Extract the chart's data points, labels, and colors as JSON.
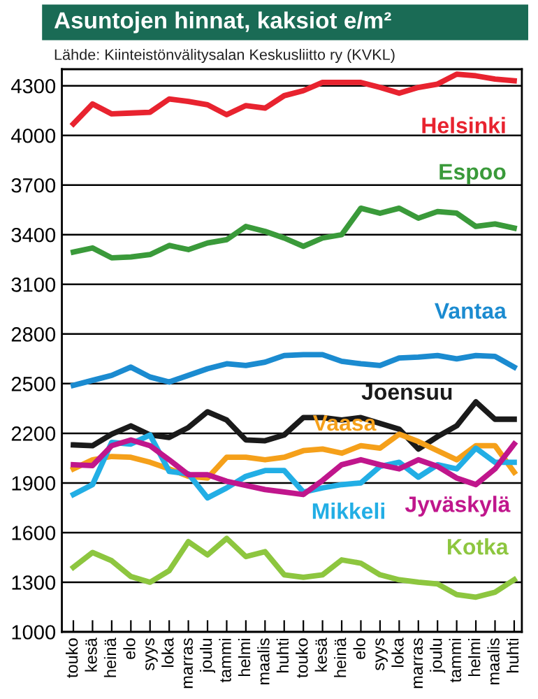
{
  "chart_data": {
    "type": "line",
    "title": "Asuntojen hinnat, kaksiot e/m²",
    "subtitle": "Lähde: Kiinteistönvälitysalan Keskusliitto ry (KVKL)",
    "categories": [
      "touko",
      "kesä",
      "heinä",
      "elo",
      "syys",
      "loka",
      "marras",
      "joulu",
      "tammi",
      "helmi",
      "maalis",
      "huhti",
      "touko",
      "kesä",
      "heinä",
      "elo",
      "syys",
      "loka",
      "marras",
      "joulu",
      "tammi",
      "helmi",
      "maalis",
      "huhti"
    ],
    "series": [
      {
        "name": "Helsinki",
        "color": "#e8232f",
        "values": [
          4070,
          4190,
          4130,
          4135,
          4140,
          4220,
          4205,
          4185,
          4125,
          4180,
          4165,
          4240,
          4270,
          4320,
          4320,
          4320,
          4290,
          4255,
          4290,
          4310,
          4370,
          4360,
          4340,
          4330
        ]
      },
      {
        "name": "Espoo",
        "color": "#3a9a3a",
        "values": [
          3295,
          3320,
          3260,
          3265,
          3280,
          3335,
          3310,
          3350,
          3370,
          3450,
          3420,
          3380,
          3330,
          3380,
          3400,
          3560,
          3530,
          3560,
          3500,
          3540,
          3530,
          3450,
          3465,
          3440
        ]
      },
      {
        "name": "Vantaa",
        "color": "#1b8bd0",
        "values": [
          2490,
          2520,
          2550,
          2600,
          2540,
          2510,
          2550,
          2590,
          2620,
          2610,
          2630,
          2670,
          2675,
          2675,
          2635,
          2620,
          2610,
          2655,
          2660,
          2670,
          2650,
          2670,
          2665,
          2600
        ]
      },
      {
        "name": "Joensuu",
        "color": "#1a1a1a",
        "values": [
          2130,
          2125,
          2195,
          2245,
          2190,
          2175,
          2235,
          2330,
          2280,
          2160,
          2155,
          2190,
          2295,
          2295,
          2280,
          2295,
          2260,
          2225,
          2105,
          2180,
          2245,
          2390,
          2285,
          2285
        ]
      },
      {
        "name": "Vaasa",
        "color": "#f5a01a",
        "values": [
          1985,
          2040,
          2060,
          2055,
          2025,
          1985,
          1940,
          1930,
          2055,
          2055,
          2040,
          2055,
          2095,
          2105,
          2080,
          2125,
          2110,
          2195,
          2150,
          2095,
          2040,
          2125,
          2125,
          1965
        ]
      },
      {
        "name": "Mikkeli",
        "color": "#22aee5",
        "values": [
          1830,
          1890,
          2145,
          2135,
          2190,
          1970,
          1955,
          1810,
          1870,
          1940,
          1975,
          1975,
          1845,
          1870,
          1890,
          1900,
          2000,
          2025,
          1935,
          2010,
          1985,
          2110,
          2025,
          2025
        ]
      },
      {
        "name": "Jyväskylä",
        "color": "#c0168c",
        "values": [
          2010,
          2005,
          2125,
          2160,
          2125,
          2040,
          1950,
          1950,
          1910,
          1885,
          1860,
          1845,
          1830,
          1915,
          2010,
          2040,
          2010,
          1985,
          2040,
          2000,
          1930,
          1890,
          1985,
          2135
        ]
      },
      {
        "name": "Kotka",
        "color": "#8dc63f",
        "values": [
          1390,
          1480,
          1430,
          1335,
          1300,
          1370,
          1545,
          1465,
          1565,
          1455,
          1485,
          1345,
          1330,
          1345,
          1435,
          1415,
          1345,
          1315,
          1300,
          1290,
          1225,
          1210,
          1240,
          1315
        ]
      }
    ],
    "ylim": [
      1000,
      4400
    ],
    "yticks": [
      1000,
      1300,
      1600,
      1900,
      2200,
      2500,
      2800,
      3100,
      3400,
      3700,
      4000,
      4300
    ],
    "grid": "y",
    "legend": false,
    "marker": "none",
    "line_style": "solid"
  }
}
